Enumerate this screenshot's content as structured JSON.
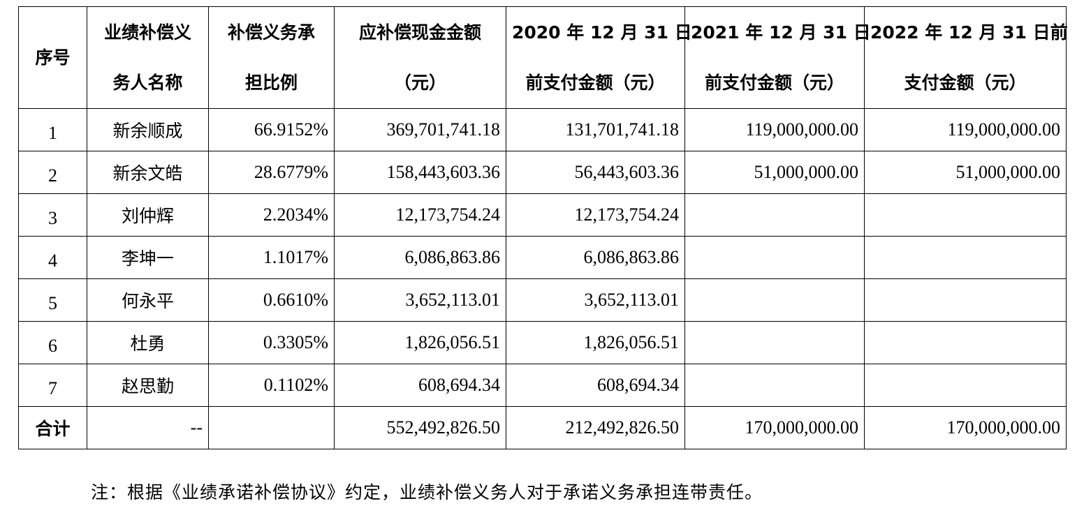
{
  "table": {
    "headers": [
      [
        "序号"
      ],
      [
        "业绩补偿义",
        "务人名称"
      ],
      [
        "补偿义务承",
        "担比例"
      ],
      [
        "应补偿现金金额",
        "（元）"
      ],
      [
        "2020 年 12 月 31 日",
        "前支付金额（元）"
      ],
      [
        "2021 年 12 月 31 日",
        "前支付金额（元）"
      ],
      [
        "2022 年 12 月 31 日前",
        "支付金额（元）"
      ]
    ],
    "rows": [
      [
        "1",
        "新余顺成",
        "66.9152%",
        "369,701,741.18",
        "131,701,741.18",
        "119,000,000.00",
        "119,000,000.00"
      ],
      [
        "2",
        "新余文皓",
        "28.6779%",
        "158,443,603.36",
        "56,443,603.36",
        "51,000,000.00",
        "51,000,000.00"
      ],
      [
        "3",
        "刘仲辉",
        "2.2034%",
        "12,173,754.24",
        "12,173,754.24",
        "",
        ""
      ],
      [
        "4",
        "李坤一",
        "1.1017%",
        "6,086,863.86",
        "6,086,863.86",
        "",
        ""
      ],
      [
        "5",
        "何永平",
        "0.6610%",
        "3,652,113.01",
        "3,652,113.01",
        "",
        ""
      ],
      [
        "6",
        "杜勇",
        "0.3305%",
        "1,826,056.51",
        "1,826,056.51",
        "",
        ""
      ],
      [
        "7",
        "赵思勤",
        "0.1102%",
        "608,694.34",
        "608,694.34",
        "",
        ""
      ]
    ],
    "total": [
      "合计",
      "--",
      "",
      "552,492,826.50",
      "212,492,826.50",
      "170,000,000.00",
      "170,000,000.00"
    ]
  },
  "note": "注：根据《业绩承诺补偿协议》约定，业绩补偿义务人对于承诺义务承担连带责任。"
}
